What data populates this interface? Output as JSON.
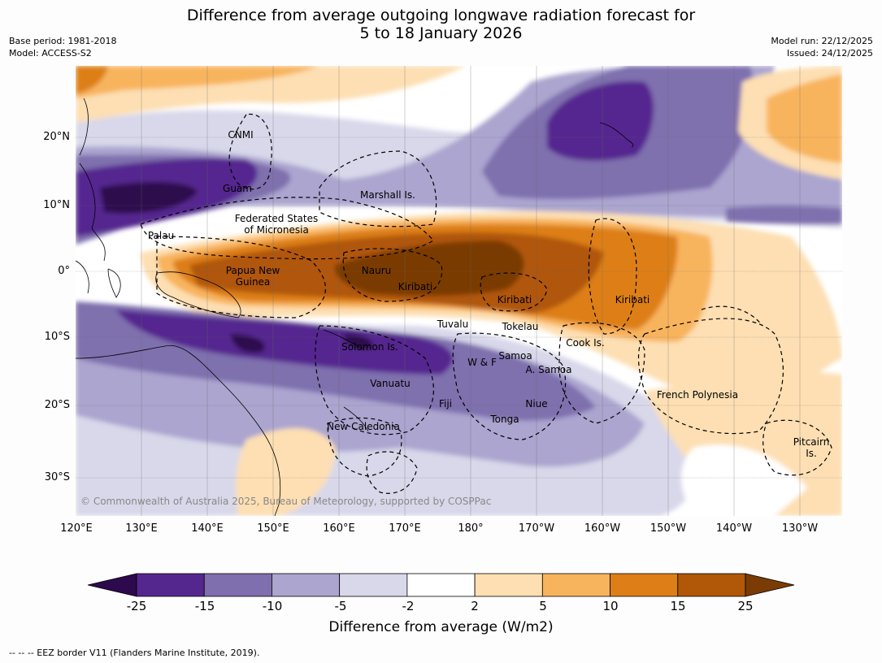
{
  "title": {
    "line1": "Difference from average outgoing longwave radiation forecast for",
    "line2": "5 to 18 January 2026"
  },
  "meta_left": {
    "base_period": "Base period: 1981-2018",
    "model": "Model: ACCESS-S2"
  },
  "meta_right": {
    "model_run": "Model run: 22/12/2025",
    "issued": "Issued: 24/12/2025"
  },
  "map": {
    "lat_labels": [
      "20°N",
      "10°N",
      "0°",
      "10°S",
      "20°S",
      "30°S"
    ],
    "lon_labels": [
      "120°E",
      "130°E",
      "140°E",
      "150°E",
      "160°E",
      "170°E",
      "180°",
      "170°W",
      "160°W",
      "150°W",
      "140°W",
      "130°W"
    ],
    "places": {
      "cnmi": "CNMI",
      "guam": "Guam",
      "marshall": "Marshall Is.",
      "fsm_line1": "Federated States",
      "fsm_line2": "of Micronesia",
      "palau": "Palau",
      "png_line1": "Papua New",
      "png_line2": "Guinea",
      "nauru": "Nauru",
      "kiribati_w": "Kiribati",
      "kiribati_c": "Kiribati",
      "kiribati_e": "Kiribati",
      "tuvalu": "Tuvalu",
      "tokelau": "Tokelau",
      "cook": "Cook Is.",
      "solomon": "Solomon Is.",
      "wallis": "W & F",
      "samoa": "Samoa",
      "asamoa": "A. Samoa",
      "vanuatu": "Vanuatu",
      "fiji": "Fiji",
      "niue": "Niue",
      "tonga": "Tonga",
      "newcal": "New Caledonia",
      "frpoly": "French Polynesia",
      "pitcairn_line1": "Pitcairn",
      "pitcairn_line2": "Is."
    },
    "copyright": "© Commonwealth of Australia 2025, Bureau of Meteorology, supported by COSPPac"
  },
  "colorbar": {
    "ticks": [
      "-25",
      "-15",
      "-10",
      "-5",
      "-2",
      "2",
      "5",
      "10",
      "15",
      "25"
    ],
    "colors": [
      "#2d0a4e",
      "#54278f",
      "#7f6fae",
      "#aba5cf",
      "#d8d8ea",
      "#ffffff",
      "#fddfb3",
      "#f8b45d",
      "#dd7f16",
      "#b05708",
      "#7a3b05"
    ],
    "label": "Difference from average (W/m2)"
  },
  "footnote": "--  --  -- EEZ border V11 (Flanders Marine Institute, 2019)."
}
